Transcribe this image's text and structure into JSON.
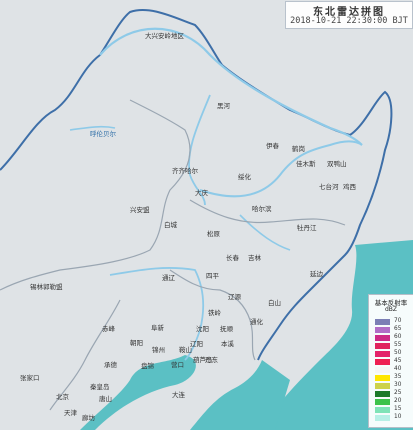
{
  "title": {
    "main": "东北雷达拼图",
    "time": "2018-10-21 22:30:00 BJT"
  },
  "colors": {
    "land": "#dfe3e6",
    "sea": "#5bc0c4",
    "river": "#8ecae8",
    "border_outer": "#3e6fa8",
    "border_inner": "#9aa6b2"
  },
  "legend": {
    "title": "基本反射率",
    "unit": "dBZ",
    "items": [
      {
        "value": "70",
        "color": "#7b7fb5"
      },
      {
        "value": "65",
        "color": "#b06ec7"
      },
      {
        "value": "60",
        "color": "#cc2a86"
      },
      {
        "value": "55",
        "color": "#e0245e"
      },
      {
        "value": "50",
        "color": "#e3236a"
      },
      {
        "value": "45",
        "color": "#ee1f52"
      },
      {
        "value": "40",
        "color": "#f5f5f5"
      },
      {
        "value": "35",
        "color": "#ffe600"
      },
      {
        "value": "30",
        "color": "#cdd24a"
      },
      {
        "value": "25",
        "color": "#1c7a2a"
      },
      {
        "value": "20",
        "color": "#3cc24a"
      },
      {
        "value": "15",
        "color": "#7fe3b7"
      },
      {
        "value": "10",
        "color": "#b7f0e6"
      }
    ]
  },
  "cities": [
    {
      "name": "大兴安岭地区",
      "color": "dark"
    },
    {
      "name": "黑河",
      "color": "dark"
    },
    {
      "name": "呼伦贝尔",
      "color": "blue"
    },
    {
      "name": "伊春",
      "color": "dark"
    },
    {
      "name": "鹤岗",
      "color": "dark"
    },
    {
      "name": "佳木斯",
      "color": "dark"
    },
    {
      "name": "双鸭山",
      "color": "dark"
    },
    {
      "name": "齐齐哈尔",
      "color": "dark"
    },
    {
      "name": "绥化",
      "color": "dark"
    },
    {
      "name": "大庆",
      "color": "dark"
    },
    {
      "name": "七台河",
      "color": "dark"
    },
    {
      "name": "鸡西",
      "color": "dark"
    },
    {
      "name": "哈尔滨",
      "color": "dark"
    },
    {
      "name": "兴安盟",
      "color": "dark"
    },
    {
      "name": "白城",
      "color": "dark"
    },
    {
      "name": "松原",
      "color": "dark"
    },
    {
      "name": "牡丹江",
      "color": "dark"
    },
    {
      "name": "长春",
      "color": "dark"
    },
    {
      "name": "吉林",
      "color": "dark"
    },
    {
      "name": "延边",
      "color": "dark"
    },
    {
      "name": "锡林郭勒盟",
      "color": "dark"
    },
    {
      "name": "通辽",
      "color": "dark"
    },
    {
      "name": "四平",
      "color": "dark"
    },
    {
      "name": "辽源",
      "color": "dark"
    },
    {
      "name": "白山",
      "color": "dark"
    },
    {
      "name": "通化",
      "color": "dark"
    },
    {
      "name": "铁岭",
      "color": "dark"
    },
    {
      "name": "赤峰",
      "color": "dark"
    },
    {
      "name": "阜新",
      "color": "dark"
    },
    {
      "name": "沈阳",
      "color": "dark"
    },
    {
      "name": "抚顺",
      "color": "dark"
    },
    {
      "name": "朝阳",
      "color": "dark"
    },
    {
      "name": "锦州",
      "color": "dark"
    },
    {
      "name": "本溪",
      "color": "dark"
    },
    {
      "name": "辽阳",
      "color": "dark"
    },
    {
      "name": "鞍山",
      "color": "dark"
    },
    {
      "name": "盘锦",
      "color": "dark"
    },
    {
      "name": "葫芦岛",
      "color": "dark"
    },
    {
      "name": "营口",
      "color": "dark"
    },
    {
      "name": "丹东",
      "color": "dark"
    },
    {
      "name": "大连",
      "color": "dark"
    },
    {
      "name": "承德",
      "color": "dark"
    },
    {
      "name": "张家口",
      "color": "dark"
    },
    {
      "name": "北京",
      "color": "dark"
    },
    {
      "name": "秦皇岛",
      "color": "dark"
    },
    {
      "name": "唐山",
      "color": "dark"
    },
    {
      "name": "天津",
      "color": "dark"
    },
    {
      "name": "廊坊",
      "color": "dark"
    }
  ]
}
